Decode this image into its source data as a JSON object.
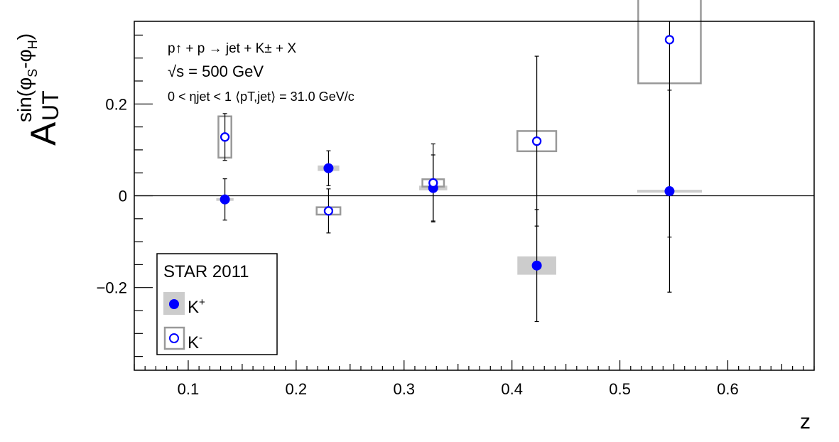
{
  "chart_data": {
    "type": "scatter",
    "xlabel": "z",
    "ylabel_main": "A",
    "ylabel_sub": "UT",
    "ylabel_sup": "sin(φS-φH)",
    "ylabel_sup_parts": {
      "a": "sin(φ",
      "s": "S",
      "b": "-φ",
      "h": "H",
      "c": ")"
    },
    "xlim": [
      0.05,
      0.68
    ],
    "ylim": [
      -0.38,
      0.38
    ],
    "xticks": [
      0.1,
      0.2,
      0.3,
      0.4,
      0.5,
      0.6
    ],
    "xtick_labels": [
      "0.1",
      "0.2",
      "0.3",
      "0.4",
      "0.5",
      "0.6"
    ],
    "yticks": [
      -0.2,
      0,
      0.2
    ],
    "ytick_labels": [
      "−0.2",
      "0",
      "0.2"
    ],
    "annotations": {
      "reaction": "p↑ + p → jet + K± + X",
      "energy": "√s = 500 GeV",
      "kinematics": "0 < ηjet < 1 ⟨pT,jet⟩ = 31.0 GeV/c"
    },
    "legend": {
      "title": "STAR 2011",
      "position": "bottom-left",
      "entries": [
        "K+",
        "K-"
      ]
    },
    "series": [
      {
        "name": "K+",
        "marker": "filled-circle",
        "color": "#0000ff",
        "syst_color": "#cccccc",
        "points": [
          {
            "x": 0.134,
            "y": -0.008,
            "err": 0.045,
            "sys": 0.003,
            "sys_halfwidth": 0.008
          },
          {
            "x": 0.23,
            "y": 0.06,
            "err": 0.038,
            "sys": 0.006,
            "sys_halfwidth": 0.01
          },
          {
            "x": 0.327,
            "y": 0.017,
            "err": 0.072,
            "sys": 0.005,
            "sys_halfwidth": 0.013
          },
          {
            "x": 0.423,
            "y": -0.152,
            "err": 0.122,
            "sys": 0.02,
            "sys_halfwidth": 0.018
          },
          {
            "x": 0.546,
            "y": 0.01,
            "err": 0.22,
            "sys": 0.003,
            "sys_halfwidth": 0.03
          }
        ]
      },
      {
        "name": "K-",
        "marker": "open-circle",
        "color": "#0000ff",
        "syst_color": "#999999",
        "points": [
          {
            "x": 0.134,
            "y": 0.128,
            "err": 0.051,
            "sys": 0.045,
            "sys_halfwidth": 0.006
          },
          {
            "x": 0.23,
            "y": -0.033,
            "err": 0.048,
            "sys": 0.008,
            "sys_halfwidth": 0.011
          },
          {
            "x": 0.327,
            "y": 0.028,
            "err": 0.085,
            "sys": 0.008,
            "sys_halfwidth": 0.01
          },
          {
            "x": 0.423,
            "y": 0.119,
            "err": 0.185,
            "sys": 0.022,
            "sys_halfwidth": 0.018
          },
          {
            "x": 0.546,
            "y": 0.34,
            "err": 0.43,
            "sys": 0.095,
            "sys_halfwidth": 0.029
          }
        ]
      }
    ]
  }
}
